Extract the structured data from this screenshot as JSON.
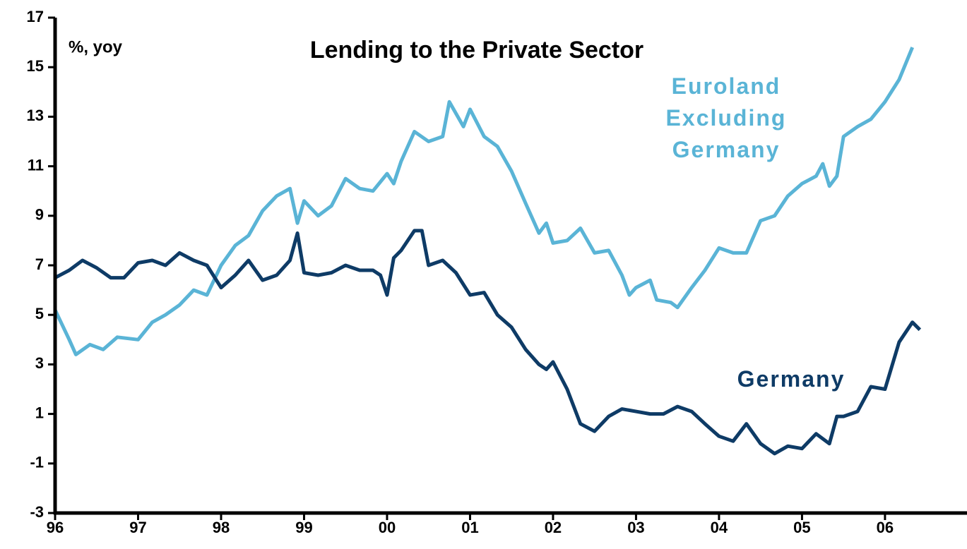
{
  "chart_data": {
    "type": "line",
    "title": "Lending to the Private Sector",
    "ylabel": "%, yoy",
    "xlim": [
      1996,
      2006.92
    ],
    "xticks": [
      {
        "value": 1996,
        "label": "96"
      },
      {
        "value": 1997,
        "label": "97"
      },
      {
        "value": 1998,
        "label": "98"
      },
      {
        "value": 1999,
        "label": "99"
      },
      {
        "value": 2000,
        "label": "00"
      },
      {
        "value": 2001,
        "label": "01"
      },
      {
        "value": 2002,
        "label": "02"
      },
      {
        "value": 2003,
        "label": "03"
      },
      {
        "value": 2004,
        "label": "04"
      },
      {
        "value": 2005,
        "label": "05"
      },
      {
        "value": 2006,
        "label": "06"
      }
    ],
    "ylim": [
      -3,
      17
    ],
    "yticks": [
      -3,
      -1,
      1,
      3,
      5,
      7,
      9,
      11,
      13,
      15,
      17
    ],
    "series": [
      {
        "name": "Euroland Excluding Germany",
        "color": "#5ab4d6",
        "x": [
          1996.0,
          1996.17,
          1996.25,
          1996.42,
          1996.58,
          1996.75,
          1997.0,
          1997.17,
          1997.33,
          1997.5,
          1997.67,
          1997.83,
          1998.0,
          1998.17,
          1998.33,
          1998.5,
          1998.67,
          1998.83,
          1998.92,
          1999.0,
          1999.17,
          1999.33,
          1999.5,
          1999.67,
          1999.83,
          2000.0,
          2000.08,
          2000.17,
          2000.33,
          2000.5,
          2000.67,
          2000.75,
          2000.92,
          2001.0,
          2001.17,
          2001.33,
          2001.5,
          2001.67,
          2001.83,
          2001.92,
          2002.0,
          2002.17,
          2002.33,
          2002.5,
          2002.67,
          2002.83,
          2002.92,
          2003.0,
          2003.17,
          2003.25,
          2003.42,
          2003.5,
          2003.67,
          2003.83,
          2004.0,
          2004.17,
          2004.33,
          2004.5,
          2004.67,
          2004.83,
          2005.0,
          2005.17,
          2005.25,
          2005.33,
          2005.42,
          2005.5,
          2005.67,
          2005.83,
          2006.0,
          2006.17,
          2006.33
        ],
        "values": [
          5.2,
          4.0,
          3.4,
          3.8,
          3.6,
          4.1,
          4.0,
          4.7,
          5.0,
          5.4,
          6.0,
          5.8,
          7.0,
          7.8,
          8.2,
          9.2,
          9.8,
          10.1,
          8.7,
          9.6,
          9.0,
          9.4,
          10.5,
          10.1,
          10.0,
          10.7,
          10.3,
          11.2,
          12.4,
          12.0,
          12.2,
          13.6,
          12.6,
          13.3,
          12.2,
          11.8,
          10.8,
          9.5,
          8.3,
          8.7,
          7.9,
          8.0,
          8.5,
          7.5,
          7.6,
          6.6,
          5.8,
          6.1,
          6.4,
          5.6,
          5.5,
          5.3,
          6.1,
          6.8,
          7.7,
          7.5,
          7.5,
          8.8,
          9.0,
          9.8,
          10.3,
          10.6,
          11.1,
          10.2,
          10.6,
          12.2,
          12.6,
          12.9,
          13.6,
          14.5,
          15.8
        ]
      },
      {
        "name": "Germany",
        "color": "#0e3b66",
        "x": [
          1996.0,
          1996.17,
          1996.33,
          1996.5,
          1996.67,
          1996.83,
          1997.0,
          1997.17,
          1997.33,
          1997.5,
          1997.67,
          1997.83,
          1998.0,
          1998.17,
          1998.33,
          1998.5,
          1998.67,
          1998.83,
          1998.92,
          1999.0,
          1999.17,
          1999.33,
          1999.5,
          1999.67,
          1999.83,
          1999.92,
          2000.0,
          2000.08,
          2000.17,
          2000.33,
          2000.42,
          2000.5,
          2000.67,
          2000.83,
          2001.0,
          2001.17,
          2001.33,
          2001.5,
          2001.67,
          2001.83,
          2001.92,
          2002.0,
          2002.17,
          2002.33,
          2002.5,
          2002.67,
          2002.83,
          2003.0,
          2003.17,
          2003.33,
          2003.5,
          2003.67,
          2003.83,
          2004.0,
          2004.17,
          2004.33,
          2004.5,
          2004.67,
          2004.83,
          2005.0,
          2005.17,
          2005.33,
          2005.42,
          2005.5,
          2005.67,
          2005.83,
          2006.0,
          2006.17,
          2006.33,
          2006.42
        ],
        "values": [
          6.5,
          6.8,
          7.2,
          6.9,
          6.5,
          6.5,
          7.1,
          7.2,
          7.0,
          7.5,
          7.2,
          7.0,
          6.1,
          6.6,
          7.2,
          6.4,
          6.6,
          7.2,
          8.3,
          6.7,
          6.6,
          6.7,
          7.0,
          6.8,
          6.8,
          6.6,
          5.8,
          7.3,
          7.6,
          8.4,
          8.4,
          7.0,
          7.2,
          6.7,
          5.8,
          5.9,
          5.0,
          4.5,
          3.6,
          3.0,
          2.8,
          3.1,
          2.0,
          0.6,
          0.3,
          0.9,
          1.2,
          1.1,
          1.0,
          1.0,
          1.3,
          1.1,
          0.6,
          0.1,
          -0.1,
          0.6,
          -0.2,
          -0.6,
          -0.3,
          -0.4,
          0.2,
          -0.2,
          0.9,
          0.9,
          1.1,
          2.1,
          2.0,
          3.9,
          4.7,
          4.4
        ]
      }
    ]
  }
}
